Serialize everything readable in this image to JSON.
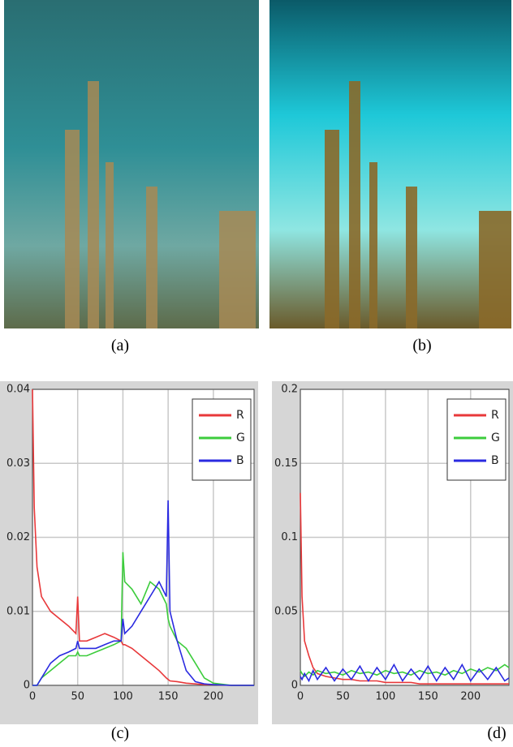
{
  "captions": [
    "(a)",
    "(b)",
    "(c)",
    "(d)"
  ],
  "chart_data": [
    {
      "type": "line",
      "legend": "upper right",
      "grid": true,
      "x": [
        0,
        2,
        5,
        10,
        20,
        30,
        40,
        48,
        50,
        52,
        60,
        70,
        80,
        90,
        98,
        100,
        102,
        110,
        120,
        130,
        140,
        148,
        150,
        152,
        160,
        170,
        180,
        190,
        200,
        220,
        245
      ],
      "xlim": [
        0,
        245
      ],
      "xticks": [
        0,
        50,
        100,
        150,
        200
      ],
      "ylim": [
        0,
        0.04
      ],
      "yticks": [
        0,
        0.01,
        0.02,
        0.03,
        0.04
      ],
      "series": [
        {
          "name": "R",
          "color": "#e8383a",
          "values": [
            0.04,
            0.024,
            0.016,
            0.012,
            0.01,
            0.009,
            0.008,
            0.007,
            0.012,
            0.006,
            0.006,
            0.0065,
            0.007,
            0.0065,
            0.006,
            0.0055,
            0.0055,
            0.005,
            0.004,
            0.003,
            0.002,
            0.001,
            0.0008,
            0.0006,
            0.0005,
            0.0003,
            0.0002,
            0.0001,
            0.0001,
            0,
            0
          ]
        },
        {
          "name": "G",
          "color": "#3ccc3c",
          "values": [
            0,
            0,
            0,
            0.001,
            0.002,
            0.003,
            0.004,
            0.004,
            0.0045,
            0.004,
            0.004,
            0.0045,
            0.005,
            0.0055,
            0.006,
            0.018,
            0.014,
            0.013,
            0.011,
            0.014,
            0.013,
            0.011,
            0.009,
            0.008,
            0.006,
            0.005,
            0.003,
            0.001,
            0.0003,
            0,
            0
          ]
        },
        {
          "name": "B",
          "color": "#2a2ae0",
          "values": [
            0,
            0,
            0,
            0.001,
            0.003,
            0.004,
            0.0045,
            0.005,
            0.006,
            0.005,
            0.005,
            0.005,
            0.0055,
            0.006,
            0.006,
            0.009,
            0.007,
            0.008,
            0.01,
            0.012,
            0.014,
            0.012,
            0.025,
            0.01,
            0.006,
            0.002,
            0.0005,
            0.0002,
            0.0001,
            0,
            0
          ]
        }
      ]
    },
    {
      "type": "line",
      "legend": "upper right",
      "grid": true,
      "x": [
        0,
        2,
        5,
        10,
        15,
        20,
        30,
        40,
        50,
        60,
        70,
        80,
        90,
        100,
        110,
        120,
        130,
        140,
        150,
        160,
        170,
        180,
        190,
        200,
        210,
        220,
        230,
        240,
        245
      ],
      "xlim": [
        0,
        245
      ],
      "xticks": [
        0,
        50,
        100,
        150,
        200
      ],
      "ylim": [
        0,
        0.2
      ],
      "yticks": [
        0,
        0.05,
        0.1,
        0.15,
        0.2
      ],
      "series": [
        {
          "name": "R",
          "color": "#e8383a",
          "values": [
            0.13,
            0.06,
            0.03,
            0.02,
            0.012,
            0.008,
            0.006,
            0.005,
            0.004,
            0.004,
            0.003,
            0.003,
            0.003,
            0.002,
            0.002,
            0.002,
            0.002,
            0.001,
            0.001,
            0.001,
            0.001,
            0.001,
            0.001,
            0.001,
            0.001,
            0.001,
            0.001,
            0.001,
            0.001
          ]
        },
        {
          "name": "G",
          "color": "#3ccc3c",
          "values": [
            0.01,
            0.008,
            0.006,
            0.009,
            0.007,
            0.01,
            0.008,
            0.009,
            0.007,
            0.01,
            0.008,
            0.009,
            0.007,
            0.01,
            0.008,
            0.009,
            0.007,
            0.01,
            0.008,
            0.009,
            0.007,
            0.01,
            0.008,
            0.011,
            0.009,
            0.012,
            0.01,
            0.014,
            0.012
          ]
        },
        {
          "name": "B",
          "color": "#2a2ae0",
          "values": [
            0.006,
            0.004,
            0.008,
            0.003,
            0.01,
            0.004,
            0.012,
            0.003,
            0.011,
            0.004,
            0.013,
            0.003,
            0.012,
            0.004,
            0.014,
            0.003,
            0.011,
            0.004,
            0.013,
            0.003,
            0.012,
            0.004,
            0.014,
            0.003,
            0.011,
            0.004,
            0.012,
            0.003,
            0.005
          ]
        }
      ]
    }
  ]
}
